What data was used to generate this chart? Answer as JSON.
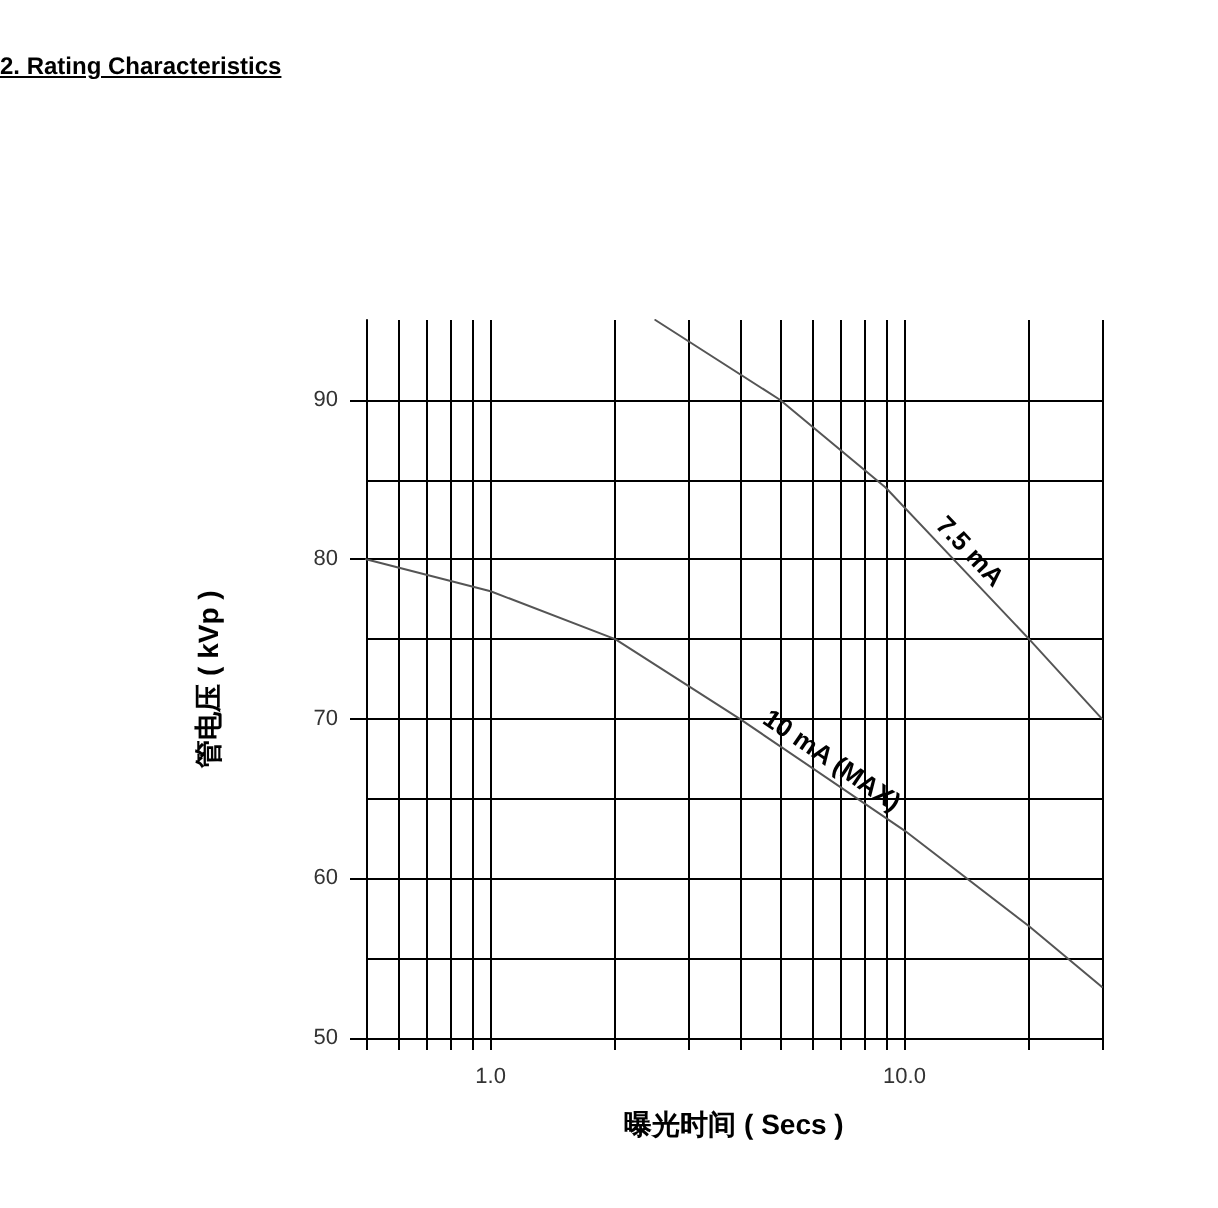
{
  "chart_data": {
    "type": "line",
    "title": "2. Rating Characteristics",
    "xlabel": "曝光时间 ( Secs )",
    "ylabel": "管电压 ( kVp )",
    "log": "x",
    "xlim": [
      0.5,
      30
    ],
    "ylim": [
      50,
      95
    ],
    "xticks": [
      {
        "value": 0.5,
        "label": null
      },
      {
        "value": 0.6,
        "label": null
      },
      {
        "value": 0.7,
        "label": null
      },
      {
        "value": 0.8,
        "label": null
      },
      {
        "value": 0.9,
        "label": null
      },
      {
        "value": 1,
        "label": "1.0"
      },
      {
        "value": 2,
        "label": null
      },
      {
        "value": 3,
        "label": null
      },
      {
        "value": 4,
        "label": null
      },
      {
        "value": 5,
        "label": null
      },
      {
        "value": 6,
        "label": null
      },
      {
        "value": 7,
        "label": null
      },
      {
        "value": 8,
        "label": null
      },
      {
        "value": 9,
        "label": null
      },
      {
        "value": 10,
        "label": "10.0"
      },
      {
        "value": 20,
        "label": null
      },
      {
        "value": 30,
        "label": null
      }
    ],
    "yticks": [
      50,
      {
        "value": 55,
        "label": null
      },
      60,
      {
        "value": 65,
        "label": null
      },
      70,
      {
        "value": 75,
        "label": null
      },
      80,
      {
        "value": 85,
        "label": null
      },
      90
    ],
    "grid": true,
    "marker": "none",
    "line_style": "solid",
    "legend": false,
    "series": [
      {
        "name": "10 mA (MAX)",
        "color": "#555555",
        "x": [
          0.5,
          1,
          2,
          4,
          10,
          20,
          30
        ],
        "values": [
          80,
          78,
          75,
          70,
          63,
          57,
          53.2
        ]
      },
      {
        "name": "7.5 mA",
        "color": "#555555",
        "x": [
          2.5,
          5,
          9,
          20,
          30
        ],
        "values": [
          95,
          90,
          84.5,
          75,
          70
        ]
      }
    ]
  }
}
